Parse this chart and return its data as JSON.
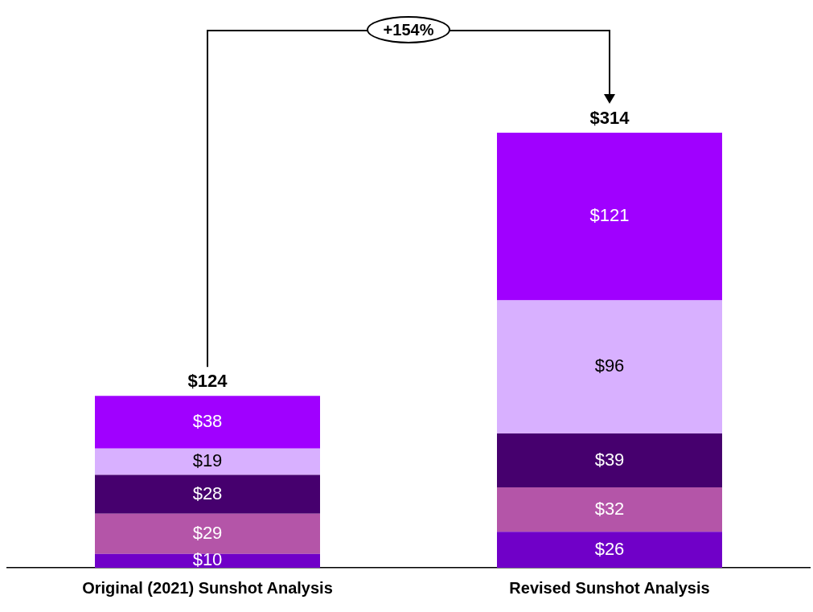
{
  "chart_data": {
    "type": "bar",
    "stacked": true,
    "categories": [
      "Original (2021) Sunshot Analysis",
      "Revised Sunshot Analysis"
    ],
    "series": [
      {
        "color": "#7000c8",
        "values": [
          10,
          26
        ],
        "value_labels": [
          "$10",
          "$26"
        ]
      },
      {
        "color": "#b455a8",
        "values": [
          29,
          32
        ],
        "value_labels": [
          "$29",
          "$32"
        ]
      },
      {
        "color": "#46006e",
        "values": [
          28,
          39
        ],
        "value_labels": [
          "$28",
          "$39"
        ]
      },
      {
        "color": "#d8b0ff",
        "values": [
          19,
          96
        ],
        "value_labels": [
          "$19",
          "$96"
        ]
      },
      {
        "color": "#a000ff",
        "values": [
          38,
          121
        ],
        "value_labels": [
          "$38",
          "$121"
        ]
      }
    ],
    "totals": [
      "$124",
      "$314"
    ],
    "annotations": [
      "+154%"
    ],
    "grid": false,
    "legend": false,
    "tick_labels": "x"
  }
}
